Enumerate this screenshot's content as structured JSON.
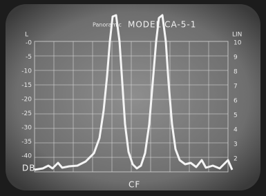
{
  "header": {
    "brand": "Panoramic",
    "model": "MODEL CA-5-1"
  },
  "left_scale": {
    "title": "L",
    "labels": [
      "-0",
      "-5",
      "-10",
      "-15",
      "-20",
      "-25",
      "-30",
      "-35",
      "-40"
    ],
    "unit": "DB"
  },
  "right_scale": {
    "title": "LIN",
    "labels": [
      "10",
      "9",
      "8",
      "7",
      "6",
      "5",
      "4",
      "3",
      "2"
    ]
  },
  "center_label": "CF"
}
